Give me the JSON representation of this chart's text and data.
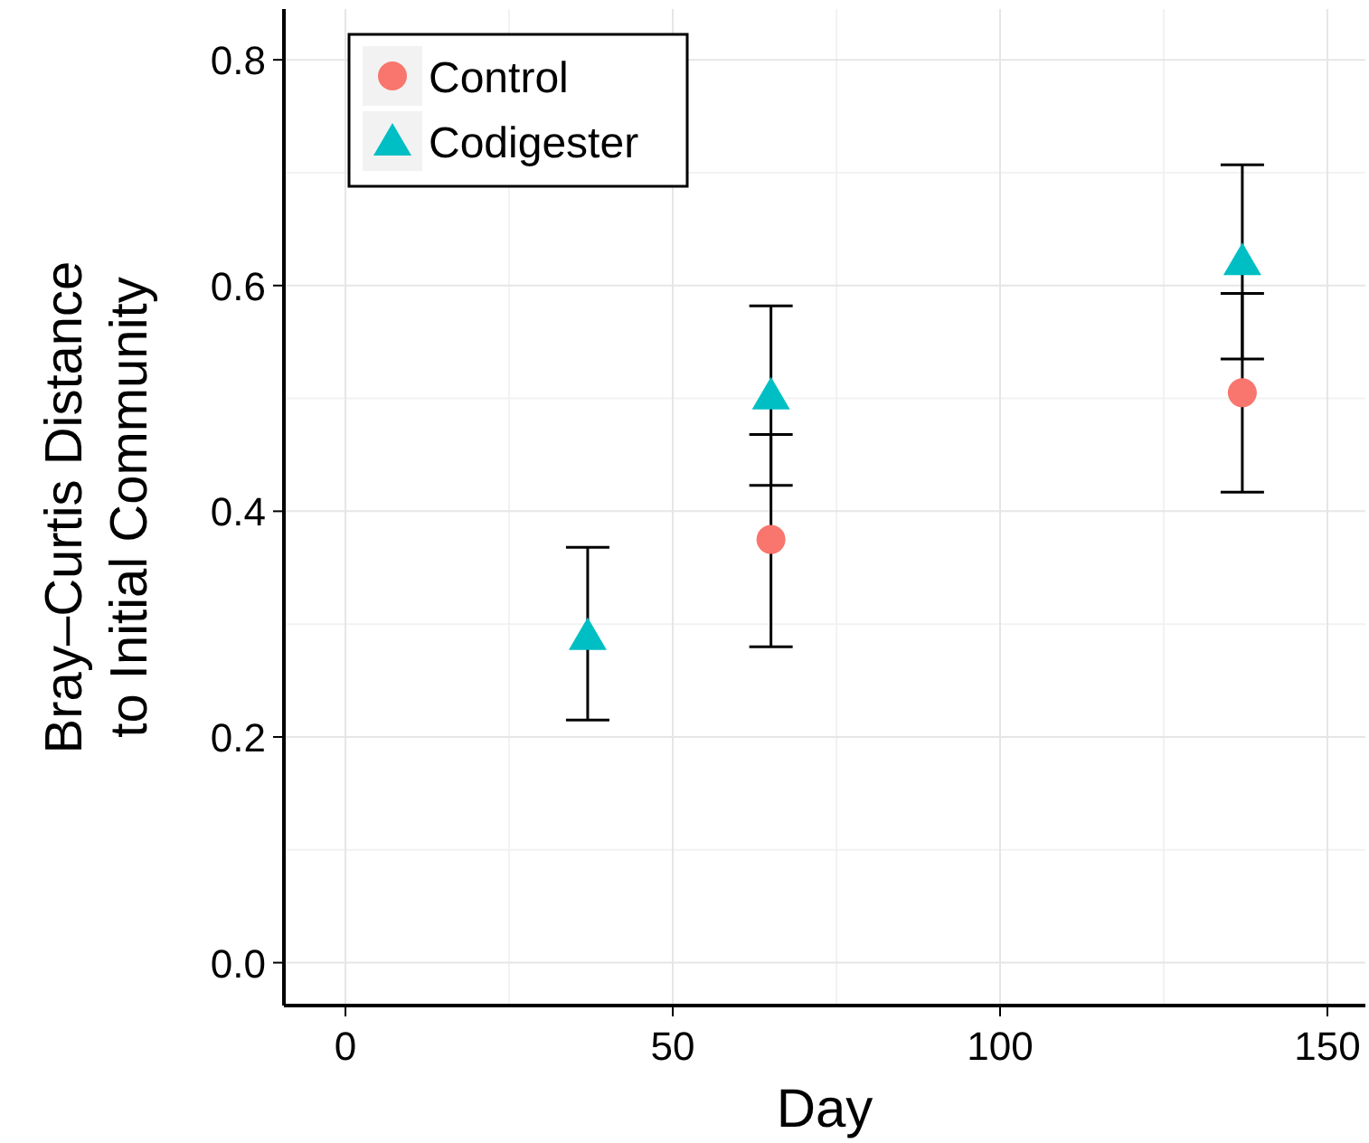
{
  "chart_data": {
    "type": "scatter",
    "xlabel": "Day",
    "ylabel": "Bray–Curtis Distance\nto Initial Community",
    "xlim": [
      -9.4,
      155.8
    ],
    "ylim": [
      -0.038,
      0.845
    ],
    "xticks": [
      0,
      50,
      100,
      150
    ],
    "yticks": [
      {
        "value": 0,
        "label": "0.0"
      },
      {
        "value": 0.2,
        "label": "0.2"
      },
      {
        "value": 0.4,
        "label": "0.4"
      },
      {
        "value": 0.6,
        "label": "0.6"
      },
      {
        "value": 0.8,
        "label": "0.8"
      }
    ],
    "grid": true,
    "legend": "top left",
    "series": [
      {
        "name": "Control",
        "color": "#f8766d",
        "marker": "circle",
        "x": [
          65,
          137
        ],
        "values": [
          0.375,
          0.505
        ],
        "errors": [
          [
            0.28,
            0.468
          ],
          [
            0.417,
            0.593
          ]
        ]
      },
      {
        "name": "Codigester",
        "color": "#00bfc4",
        "marker": "triangle",
        "x": [
          37,
          65,
          137
        ],
        "values": [
          0.29,
          0.503,
          0.622
        ],
        "errors": [
          [
            0.215,
            0.368
          ],
          [
            0.423,
            0.582
          ],
          [
            0.535,
            0.707
          ]
        ]
      }
    ]
  }
}
